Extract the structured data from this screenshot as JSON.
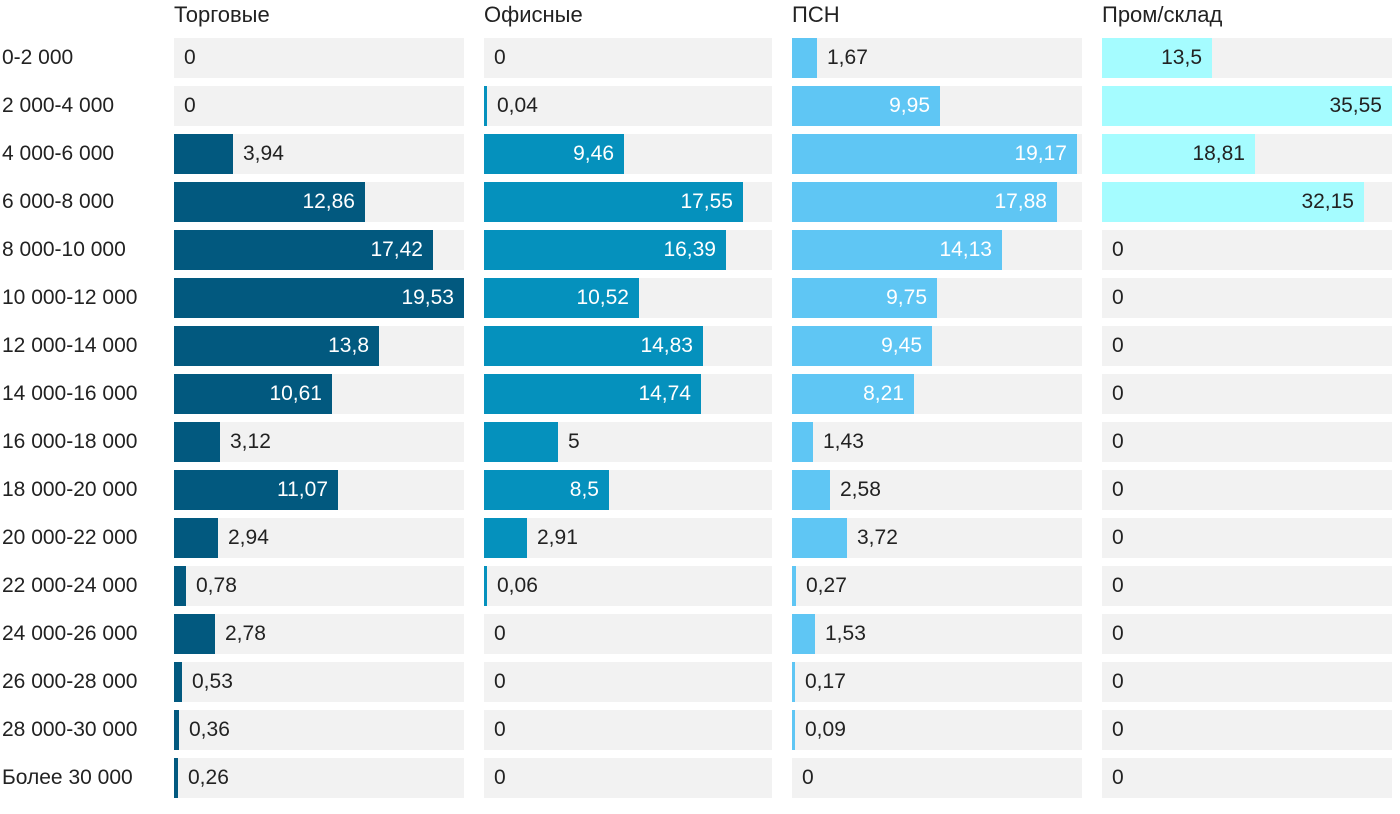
{
  "chart_data": {
    "type": "bar",
    "orientation": "horizontal",
    "layout": "small-multiples",
    "categories": [
      "0-2 000",
      "2 000-4 000",
      "4 000-6 000",
      "6 000-8 000",
      "8 000-10 000",
      "10 000-12 000",
      "12 000-14 000",
      "14 000-16 000",
      "16 000-18 000",
      "18 000-20 000",
      "20 000-22 000",
      "22 000-24 000",
      "24 000-26 000",
      "26 000-28 000",
      "28 000-30 000",
      "Более 30 000"
    ],
    "series": [
      {
        "name": "Торговые",
        "color": "#02597f",
        "max": 19.53,
        "values": [
          0,
          0,
          3.94,
          12.86,
          17.42,
          19.53,
          13.8,
          10.61,
          3.12,
          11.07,
          2.94,
          0.78,
          2.78,
          0.53,
          0.36,
          0.26
        ],
        "labels": [
          "0",
          "0",
          "3,94",
          "12,86",
          "17,42",
          "19,53",
          "13,8",
          "10,61",
          "3,12",
          "11,07",
          "2,94",
          "0,78",
          "2,78",
          "0,53",
          "0,36",
          "0,26"
        ]
      },
      {
        "name": "Офисные",
        "color": "#0591bd",
        "max": 19.53,
        "values": [
          0,
          0.04,
          9.46,
          17.55,
          16.39,
          10.52,
          14.83,
          14.74,
          5,
          8.5,
          2.91,
          0.06,
          0,
          0,
          0,
          0
        ],
        "labels": [
          "0",
          "0,04",
          "9,46",
          "17,55",
          "16,39",
          "10,52",
          "14,83",
          "14,74",
          "5",
          "8,5",
          "2,91",
          "0,06",
          "0",
          "0",
          "0",
          "0"
        ]
      },
      {
        "name": "ПСН",
        "color": "#5fc6f4",
        "max": 19.53,
        "values": [
          1.67,
          9.95,
          19.17,
          17.88,
          14.13,
          9.75,
          9.45,
          8.21,
          1.43,
          2.58,
          3.72,
          0.27,
          1.53,
          0.17,
          0.09,
          0
        ],
        "labels": [
          "1,67",
          "9,95",
          "19,17",
          "17,88",
          "14,13",
          "9,75",
          "9,45",
          "8,21",
          "1,43",
          "2,58",
          "3,72",
          "0,27",
          "1,53",
          "0,17",
          "0,09",
          "0"
        ]
      },
      {
        "name": "Пром/склад",
        "color": "#a5fcff",
        "max": 35.55,
        "values": [
          13.5,
          35.55,
          18.81,
          32.15,
          0,
          0,
          0,
          0,
          0,
          0,
          0,
          0,
          0,
          0,
          0,
          0
        ],
        "labels": [
          "13,5",
          "35,55",
          "18,81",
          "32,15",
          "0",
          "0",
          "0",
          "0",
          "0",
          "0",
          "0",
          "0",
          "0",
          "0",
          "0",
          "0"
        ]
      }
    ],
    "title": "",
    "xlabel": "",
    "ylabel": "",
    "grid": false,
    "legend": "none"
  }
}
